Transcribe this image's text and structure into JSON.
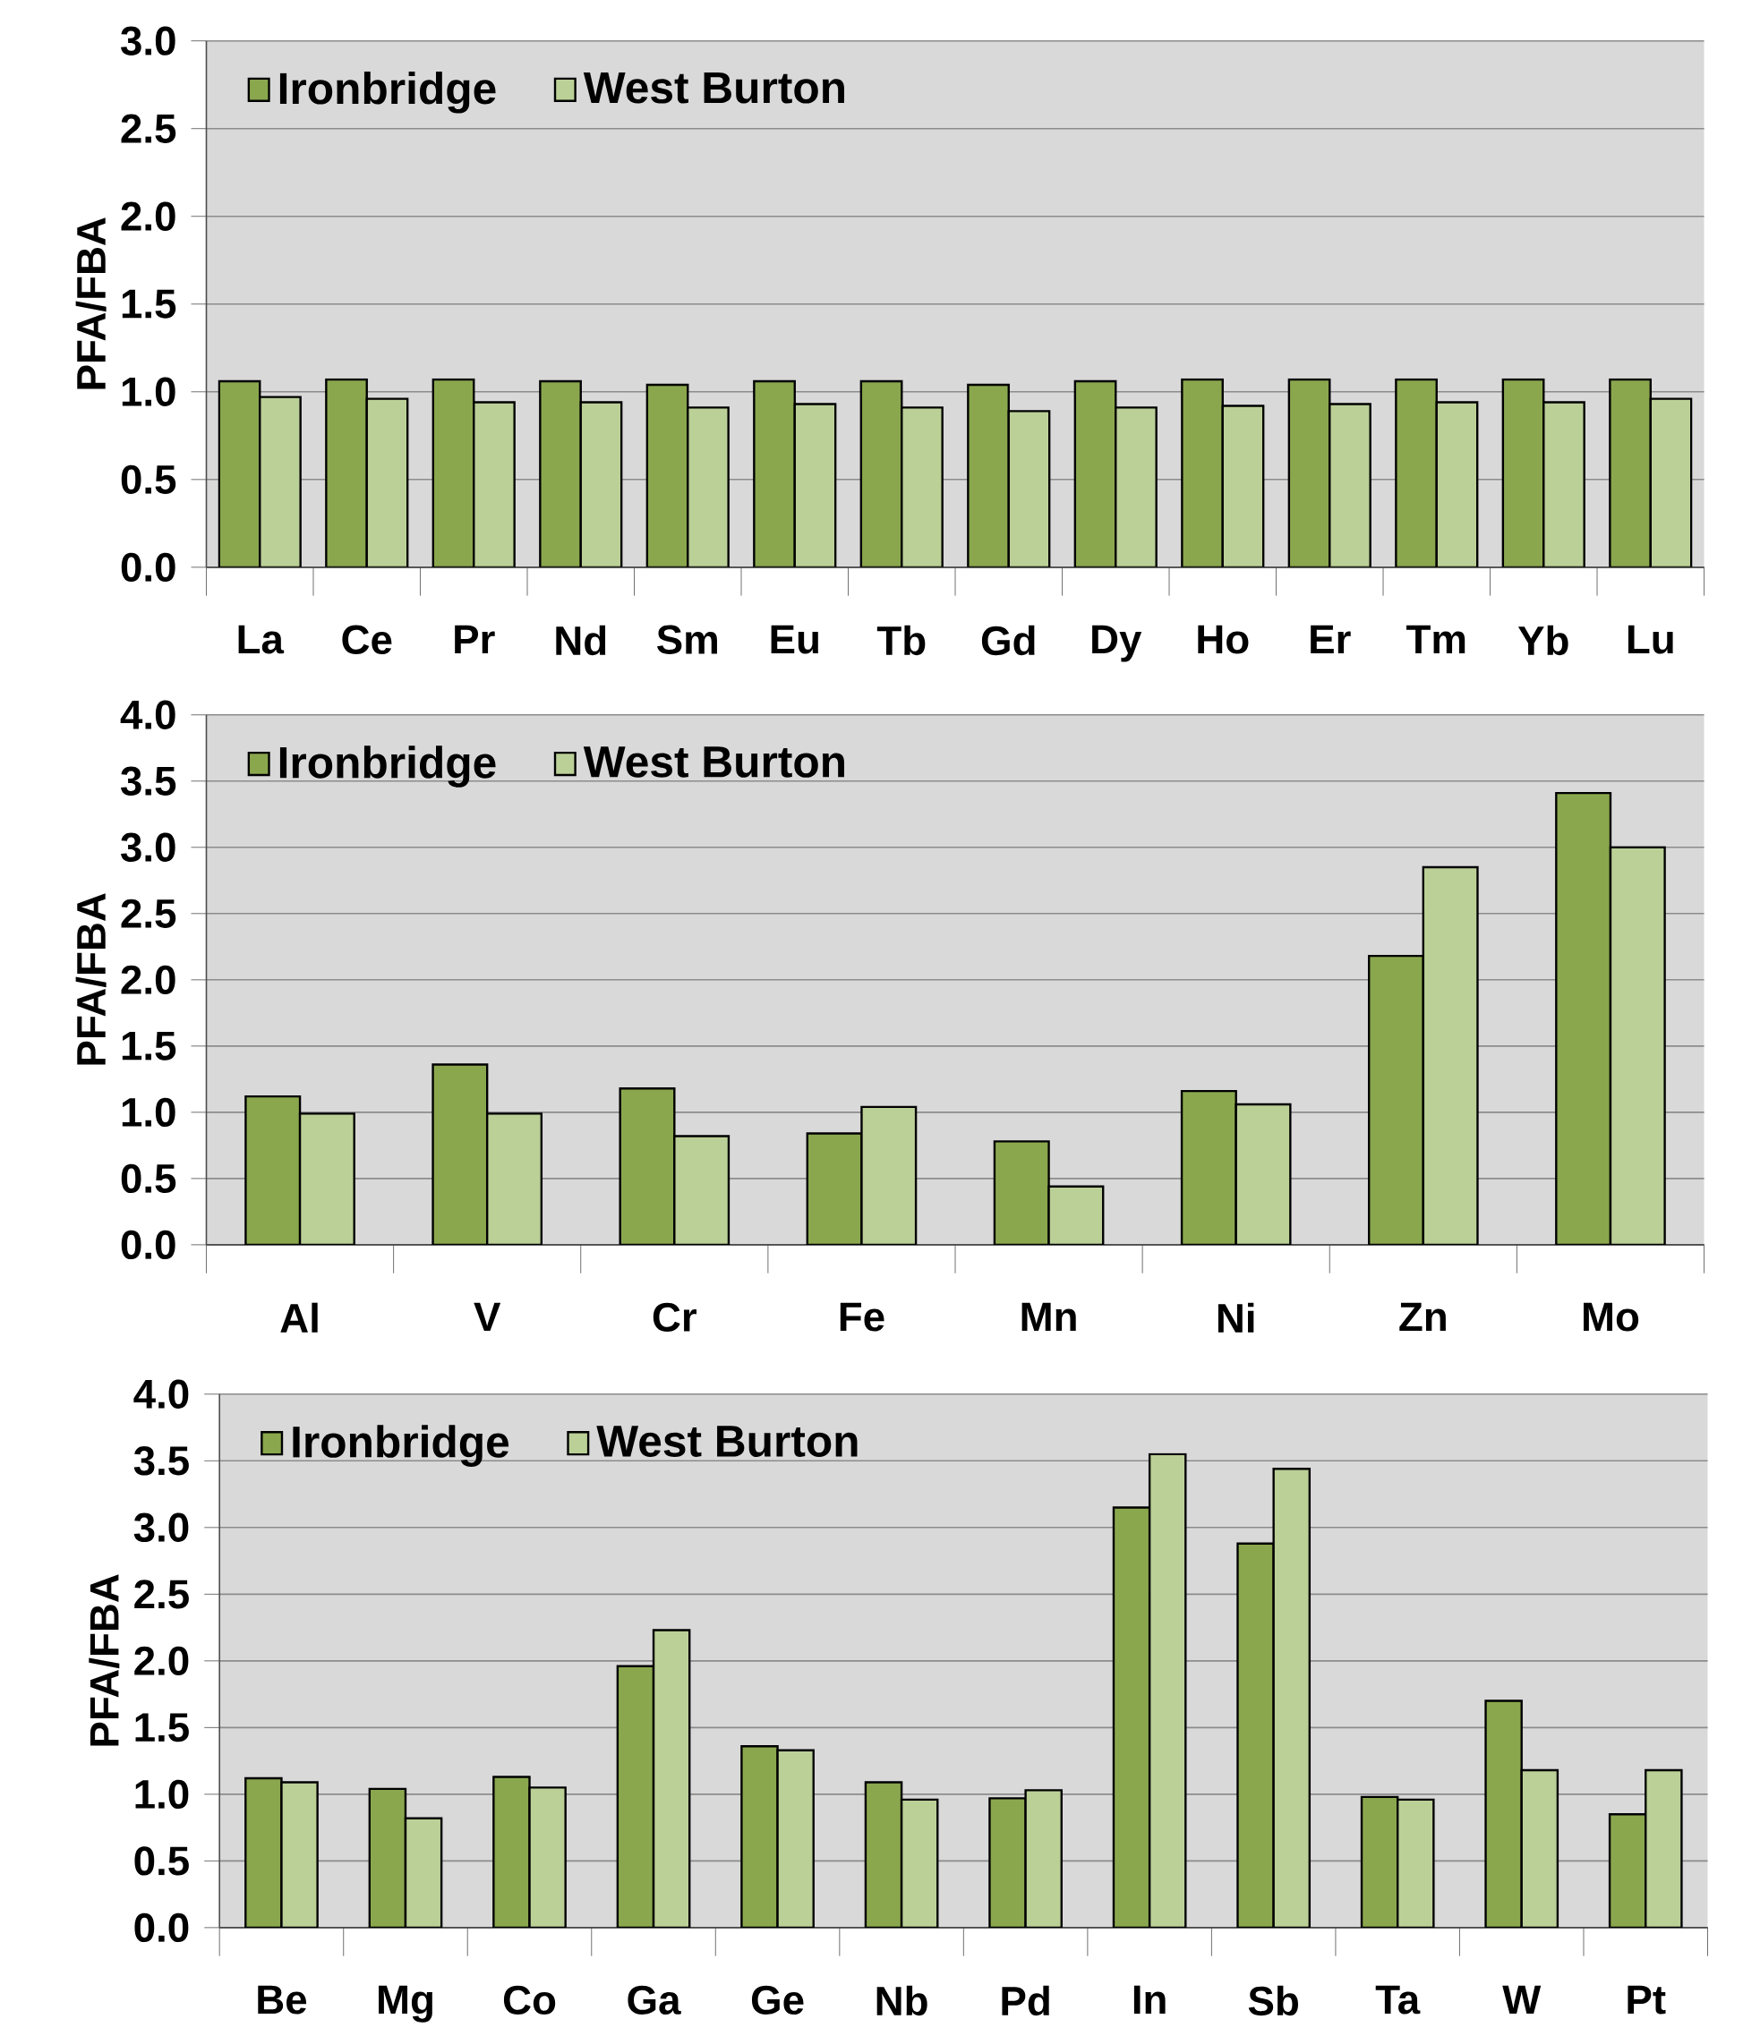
{
  "chart_data": [
    {
      "type": "bar",
      "ylabel": "PFA/FBA",
      "categories": [
        "La",
        "Ce",
        "Pr",
        "Nd",
        "Sm",
        "Eu",
        "Tb",
        "Gd",
        "Dy",
        "Ho",
        "Er",
        "Tm",
        "Yb",
        "Lu"
      ],
      "series": [
        {
          "name": "Ironbridge",
          "color": "#8aa74e",
          "values": [
            1.06,
            1.07,
            1.07,
            1.06,
            1.04,
            1.06,
            1.06,
            1.04,
            1.06,
            1.07,
            1.07,
            1.07,
            1.07,
            1.07
          ]
        },
        {
          "name": "West Burton",
          "color": "#bbd097",
          "values": [
            0.97,
            0.96,
            0.94,
            0.94,
            0.91,
            0.93,
            0.91,
            0.89,
            0.91,
            0.92,
            0.93,
            0.94,
            0.94,
            0.96
          ]
        }
      ],
      "ylim": [
        0,
        3.0
      ],
      "yticks": [
        {
          "value": 0,
          "label": "0.0"
        },
        {
          "value": 0.5,
          "label": "0.5"
        },
        {
          "value": 1.0,
          "label": "1.0"
        },
        {
          "value": 1.5,
          "label": "1.5"
        },
        {
          "value": 2.0,
          "label": "2.0"
        },
        {
          "value": 2.5,
          "label": "2.5"
        },
        {
          "value": 3.0,
          "label": "3.0"
        }
      ],
      "grid": "y",
      "legend": "top left"
    },
    {
      "type": "bar",
      "ylabel": "PFA/FBA",
      "categories": [
        "Al",
        "V",
        "Cr",
        "Fe",
        "Mn",
        "Ni",
        "Zn",
        "Mo"
      ],
      "series": [
        {
          "name": "Ironbridge",
          "color": "#8aa74e",
          "values": [
            1.12,
            1.36,
            1.18,
            0.84,
            0.78,
            1.16,
            2.18,
            3.41
          ]
        },
        {
          "name": "West Burton",
          "color": "#bbd097",
          "values": [
            0.99,
            0.99,
            0.82,
            1.04,
            0.44,
            1.06,
            2.85,
            3.0
          ]
        }
      ],
      "ylim": [
        0,
        4.0
      ],
      "yticks": [
        {
          "value": 0,
          "label": "0.0"
        },
        {
          "value": 0.5,
          "label": "0.5"
        },
        {
          "value": 1.0,
          "label": "1.0"
        },
        {
          "value": 1.5,
          "label": "1.5"
        },
        {
          "value": 2.0,
          "label": "2.0"
        },
        {
          "value": 2.5,
          "label": "2.5"
        },
        {
          "value": 3.0,
          "label": "3.0"
        },
        {
          "value": 3.5,
          "label": "3.5"
        },
        {
          "value": 4.0,
          "label": "4.0"
        }
      ],
      "grid": "y",
      "legend": "top left"
    },
    {
      "type": "bar",
      "ylabel": "PFA/FBA",
      "categories": [
        "Be",
        "Mg",
        "Co",
        "Ga",
        "Ge",
        "Nb",
        "Pd",
        "In",
        "Sb",
        "Ta",
        "W",
        "Pt"
      ],
      "series": [
        {
          "name": "Ironbridge",
          "color": "#8aa74e",
          "values": [
            1.12,
            1.04,
            1.13,
            1.96,
            1.36,
            1.09,
            0.97,
            3.15,
            2.88,
            0.98,
            1.7,
            0.85
          ]
        },
        {
          "name": "West Burton",
          "color": "#bbd097",
          "values": [
            1.09,
            0.82,
            1.05,
            2.23,
            1.33,
            0.96,
            1.03,
            3.55,
            3.44,
            0.96,
            1.18,
            1.18
          ]
        }
      ],
      "ylim": [
        0,
        4.0
      ],
      "yticks": [
        {
          "value": 0,
          "label": "0.0"
        },
        {
          "value": 0.5,
          "label": "0.5"
        },
        {
          "value": 1.0,
          "label": "1.0"
        },
        {
          "value": 1.5,
          "label": "1.5"
        },
        {
          "value": 2.0,
          "label": "2.0"
        },
        {
          "value": 2.5,
          "label": "2.5"
        },
        {
          "value": 3.0,
          "label": "3.0"
        },
        {
          "value": 3.5,
          "label": "3.5"
        },
        {
          "value": 4.0,
          "label": "4.0"
        }
      ],
      "grid": "y",
      "legend": "top left"
    }
  ]
}
